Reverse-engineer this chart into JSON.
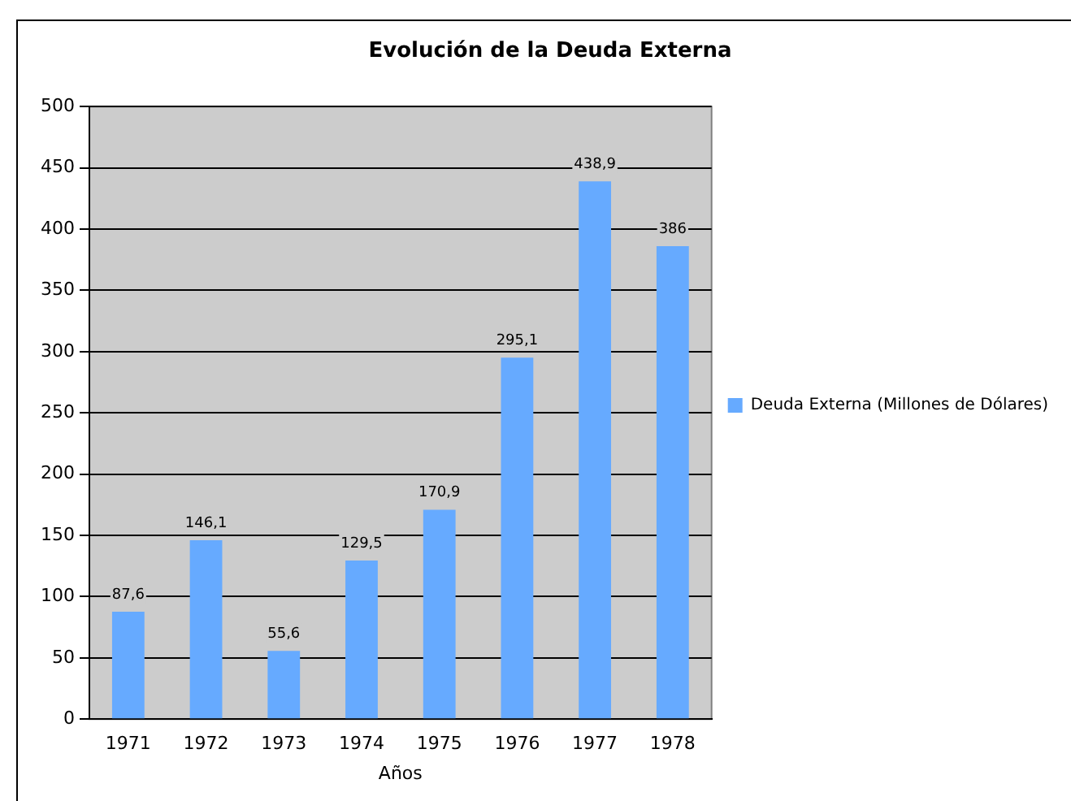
{
  "chart_data": {
    "type": "bar",
    "title": "Evolución de la Deuda Externa",
    "xlabel": "Años",
    "categories": [
      "1971",
      "1972",
      "1973",
      "1974",
      "1975",
      "1976",
      "1977",
      "1978"
    ],
    "series": [
      {
        "name": "Deuda Externa (Millones de Dólares)",
        "color": "#66aaff",
        "values": [
          87.6,
          146.1,
          55.6,
          129.5,
          170.9,
          295.1,
          438.9,
          386
        ],
        "value_labels": [
          "87,6",
          "146,1",
          "55,6",
          "129,5",
          "170,9",
          "295,1",
          "438,9",
          "386"
        ]
      }
    ],
    "ylim": [
      0,
      500
    ],
    "yticks": [
      0,
      50,
      100,
      150,
      200,
      250,
      300,
      350,
      400,
      450,
      500
    ],
    "grid": "y",
    "legend": "right"
  }
}
